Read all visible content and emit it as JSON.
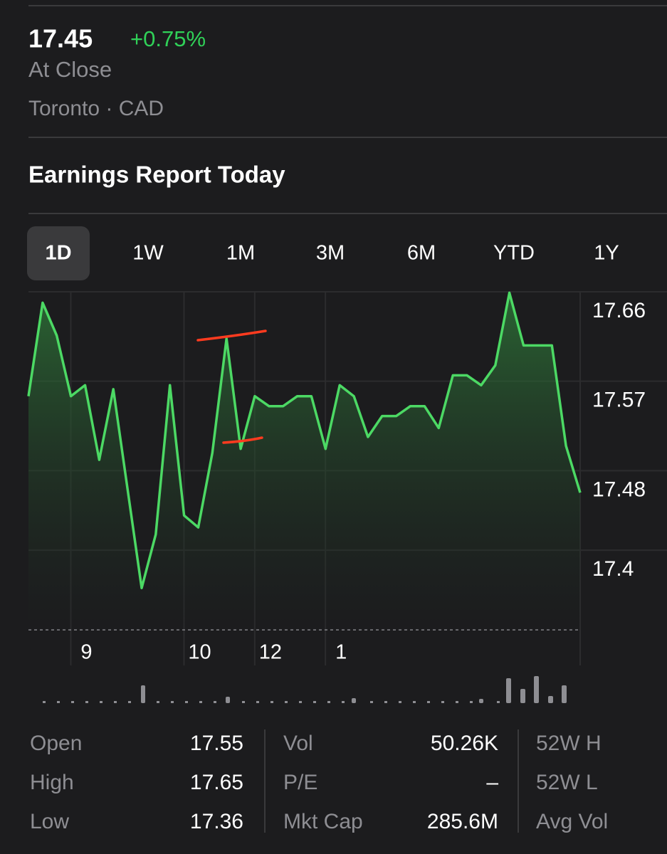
{
  "header": {
    "price": "17.45",
    "change": "+0.75%",
    "status": "At Close",
    "exchange": "Toronto · CAD"
  },
  "news_title": "Earnings Report Today",
  "tabs": [
    "1D",
    "1W",
    "1M",
    "3M",
    "6M",
    "YTD",
    "1Y"
  ],
  "selected_tab": "1D",
  "chart_data": {
    "type": "line",
    "categories": [
      null,
      null,
      null,
      null,
      "9",
      null,
      null,
      null,
      null,
      null,
      null,
      null,
      "10",
      null,
      null,
      null,
      null,
      "12",
      null,
      null,
      null,
      null,
      "1",
      null,
      null,
      null,
      null,
      null,
      null,
      null,
      null,
      null,
      null,
      null,
      null,
      null,
      null,
      null,
      null,
      null
    ],
    "series": [
      {
        "color": "#4cd964",
        "values": [
          17.575,
          17.669,
          17.636,
          17.575,
          17.586,
          17.511,
          17.582,
          17.482,
          17.382,
          17.436,
          17.586,
          17.455,
          17.443,
          17.518,
          17.633,
          17.522,
          17.575,
          17.565,
          17.565,
          17.575,
          17.575,
          17.522,
          17.586,
          17.575,
          17.534,
          17.555,
          17.555,
          17.565,
          17.565,
          17.543,
          17.596,
          17.596,
          17.586,
          17.606,
          17.679,
          17.626,
          17.626,
          17.626,
          17.525,
          17.478
        ]
      }
    ],
    "ylim": [
      17.34,
      17.68
    ],
    "yticks": [
      17.66,
      17.57,
      17.48,
      17.4
    ],
    "grid": true
  },
  "stats": [
    [
      {
        "label": "Open",
        "value": "17.55"
      },
      {
        "label": "High",
        "value": "17.65"
      },
      {
        "label": "Low",
        "value": "17.36"
      }
    ],
    [
      {
        "label": "Vol",
        "value": "50.26K"
      },
      {
        "label": "P/E",
        "value": "–"
      },
      {
        "label": "Mkt Cap",
        "value": "285.6M"
      }
    ],
    [
      {
        "label": "52W H"
      },
      {
        "label": "52W L"
      },
      {
        "label": "Avg Vol"
      }
    ]
  ]
}
